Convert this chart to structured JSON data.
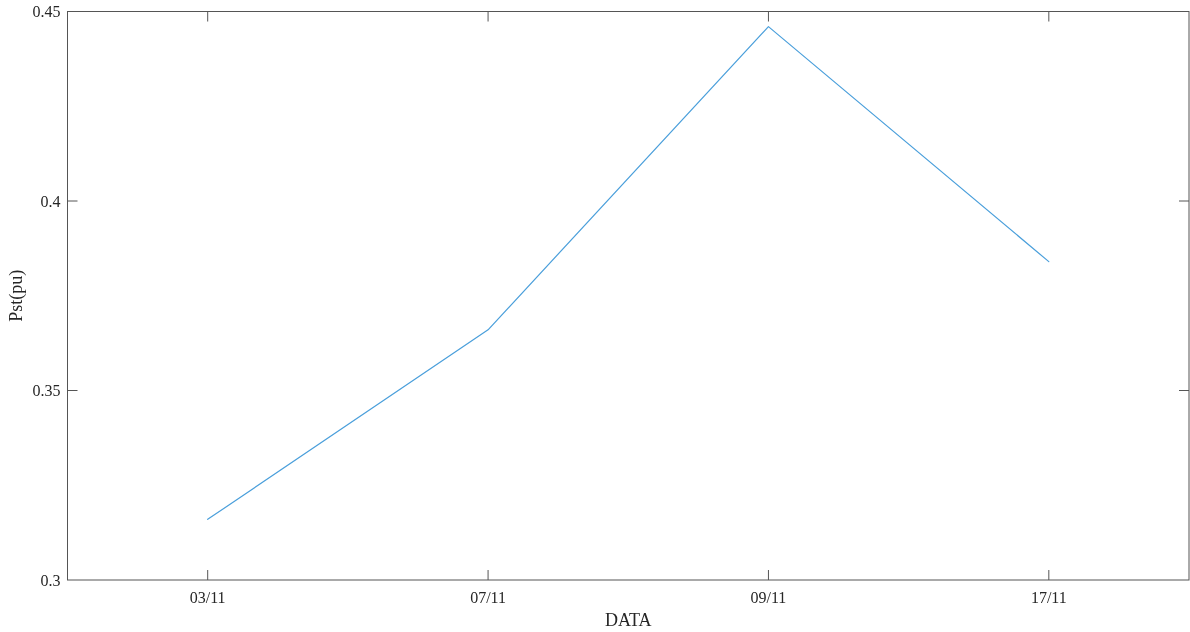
{
  "chart_data": {
    "type": "line",
    "xlabel": "DATA",
    "ylabel": "Pst(pu)",
    "categories": [
      "03/11",
      "07/11",
      "09/11",
      "17/11"
    ],
    "values": [
      0.316,
      0.366,
      0.446,
      0.384
    ],
    "color": "#4a9fdb",
    "ylim": [
      0.3,
      0.45
    ],
    "yticks": [
      0.3,
      0.35,
      0.4,
      0.45
    ],
    "grid": false
  }
}
